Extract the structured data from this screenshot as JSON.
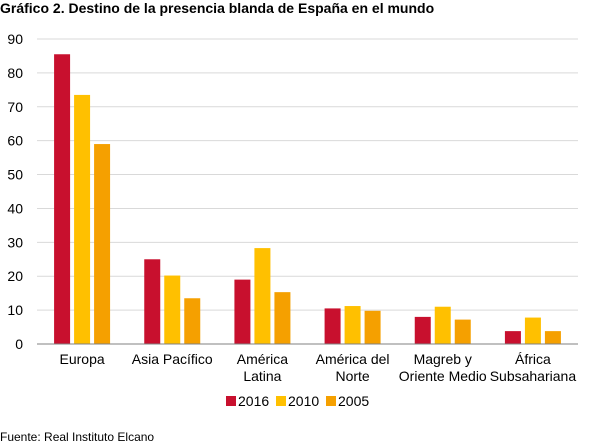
{
  "title": "Gráfico 2. Destino de la presencia blanda de España en el mundo",
  "source": "Fuente: Real Instituto Elcano",
  "colors": {
    "2016": "#c8102e",
    "2010": "#ffc000",
    "2005": "#f5a000",
    "grid": "#d9d9d9",
    "axis": "#808080"
  },
  "chart_data": {
    "type": "bar",
    "title": "Gráfico 2. Destino de la presencia blanda de España en el mundo",
    "xlabel": "",
    "ylabel": "",
    "ylim": [
      0,
      90
    ],
    "yticks": [
      0,
      10,
      20,
      30,
      40,
      50,
      60,
      70,
      80,
      90
    ],
    "grid": true,
    "legend": "bottom",
    "categories": [
      [
        "Europa"
      ],
      [
        "Asia Pacífico"
      ],
      [
        "América",
        "Latina"
      ],
      [
        "América del",
        "Norte"
      ],
      [
        "Magreb y",
        "Oriente Medio"
      ],
      [
        "África",
        "Subsahariana"
      ]
    ],
    "series": [
      {
        "name": "2016",
        "values": [
          85.5,
          25.0,
          19.0,
          10.5,
          8.0,
          3.8
        ]
      },
      {
        "name": "2010",
        "values": [
          73.5,
          20.2,
          28.3,
          11.2,
          11.0,
          7.8
        ]
      },
      {
        "name": "2005",
        "values": [
          59.0,
          13.5,
          15.3,
          9.8,
          7.2,
          3.8
        ]
      }
    ]
  }
}
